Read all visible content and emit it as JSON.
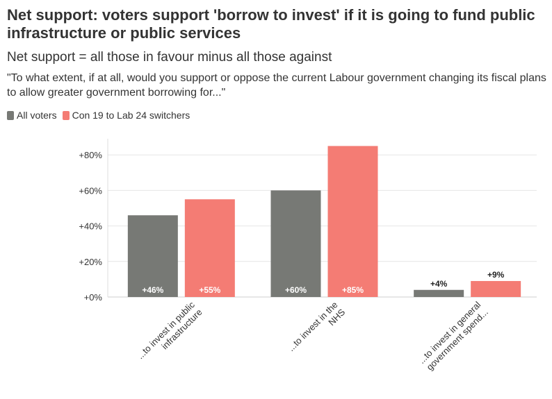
{
  "chart_data": {
    "type": "bar",
    "title": "Net support: voters support 'borrow to invest' if it is going to fund public infrastructure or public services",
    "subtitle": "Net support = all those in favour minus all those against",
    "question": "\"To what extent, if at all, would you support or oppose the current Labour government changing its fiscal plans to allow greater government borrowing for...\"",
    "categories": [
      [
        "...to invest in public",
        "infrastructure"
      ],
      [
        "...to invest in the",
        "NHS"
      ],
      [
        "...to invest in general",
        "government spend..."
      ]
    ],
    "series": [
      {
        "name": "All voters",
        "color": "#777975",
        "values": [
          46,
          60,
          4
        ],
        "labels": [
          "+46%",
          "+60%",
          "+4%"
        ]
      },
      {
        "name": "Con 19 to Lab 24 switchers",
        "color": "#f47c74",
        "values": [
          55,
          85,
          9
        ],
        "labels": [
          "+55%",
          "+85%",
          "+9%"
        ]
      }
    ],
    "yticks": [
      0,
      20,
      40,
      60,
      80
    ],
    "ytick_labels": [
      "+0%",
      "+20%",
      "+40%",
      "+60%",
      "+80%"
    ],
    "ylim": [
      0,
      90
    ],
    "grid": true,
    "legend_position": "top-left"
  }
}
